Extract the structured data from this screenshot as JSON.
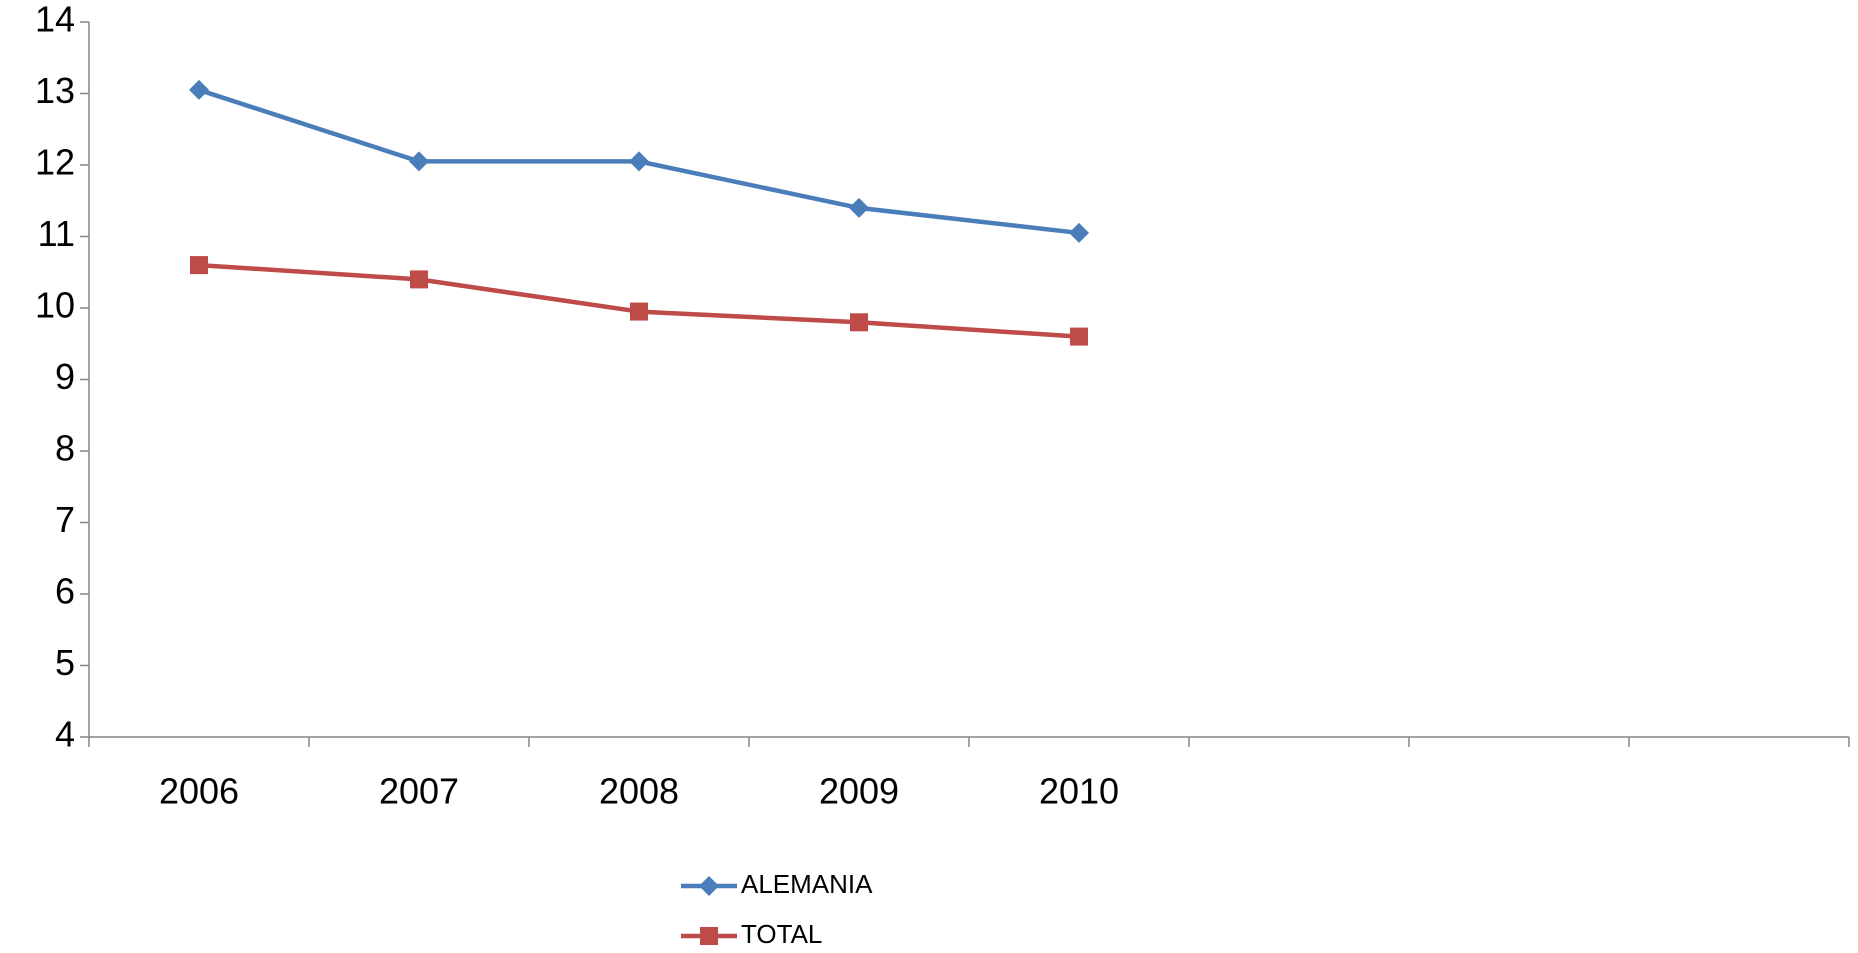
{
  "chart_data": {
    "type": "line",
    "categories": [
      "2006",
      "2007",
      "2008",
      "2009",
      "2010",
      null,
      null,
      null
    ],
    "series": [
      {
        "name": "ALEMANIA",
        "color": "#4a7ebb",
        "marker": "diamond",
        "values": [
          13.05,
          12.05,
          12.05,
          11.4,
          11.05,
          null,
          null,
          null
        ]
      },
      {
        "name": "TOTAL",
        "color": "#be4b48",
        "marker": "square",
        "values": [
          10.6,
          10.4,
          9.95,
          9.8,
          9.6,
          null,
          null,
          null
        ]
      }
    ],
    "ylim": [
      4,
      14
    ],
    "yticks": [
      4,
      5,
      6,
      7,
      8,
      9,
      10,
      11,
      12,
      13,
      14
    ],
    "grid": false,
    "legend": "bottom"
  }
}
